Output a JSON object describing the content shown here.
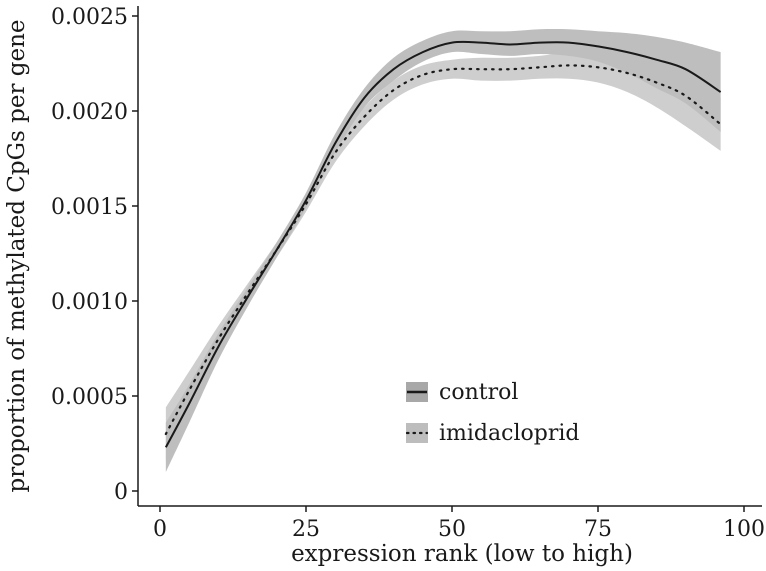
{
  "chart_data": {
    "type": "line",
    "title": "",
    "xlabel": "expression rank (low to high)",
    "ylabel": "proportion of methylated CpGs per gene",
    "xlim": [
      -3,
      100
    ],
    "ylim": [
      0,
      0.0025
    ],
    "x_ticks": [
      0,
      25,
      50,
      75,
      100
    ],
    "x_tick_labels": [
      "0",
      "25",
      "50",
      "75",
      "100"
    ],
    "y_ticks": [
      0,
      0.0005,
      0.001,
      0.0015,
      0.002,
      0.0025
    ],
    "y_tick_labels": [
      "0",
      "0.0005",
      "0.0010",
      "0.0015",
      "0.0020",
      "0.0025"
    ],
    "grid": false,
    "legend_position": "bottom-center",
    "series": [
      {
        "name": "control",
        "line_style": "solid",
        "color": "#1a1a1a",
        "band_color": "#a8a8a8",
        "x": [
          1,
          5,
          10,
          15,
          20,
          25,
          30,
          35,
          40,
          45,
          50,
          55,
          60,
          65,
          70,
          75,
          80,
          85,
          90,
          96
        ],
        "y": [
          0.00023,
          0.00046,
          0.00076,
          0.00102,
          0.00127,
          0.00153,
          0.00183,
          0.00207,
          0.00222,
          0.00231,
          0.00236,
          0.00236,
          0.00235,
          0.00236,
          0.00236,
          0.00234,
          0.00231,
          0.00227,
          0.00222,
          0.0021
        ],
        "lower": [
          0.0001,
          0.00036,
          0.00069,
          0.00097,
          0.00123,
          0.00149,
          0.00178,
          0.00202,
          0.00216,
          0.00226,
          0.00231,
          0.0023,
          0.00229,
          0.0023,
          0.00229,
          0.00226,
          0.0022,
          0.00212,
          0.00204,
          0.00189
        ],
        "upper": [
          0.00036,
          0.00056,
          0.00083,
          0.00107,
          0.00131,
          0.00157,
          0.00188,
          0.00212,
          0.00228,
          0.00237,
          0.00242,
          0.00242,
          0.00242,
          0.00243,
          0.00243,
          0.00242,
          0.00241,
          0.00239,
          0.00236,
          0.00231
        ]
      },
      {
        "name": "imidacloprid",
        "line_style": "dotted",
        "color": "#1a1a1a",
        "band_color": "#bdbdbd",
        "x": [
          1,
          5,
          10,
          15,
          20,
          25,
          30,
          35,
          40,
          45,
          50,
          55,
          60,
          65,
          70,
          75,
          80,
          85,
          90,
          96
        ],
        "y": [
          0.0003,
          0.00053,
          0.0008,
          0.00104,
          0.00127,
          0.00151,
          0.00178,
          0.00197,
          0.00211,
          0.00219,
          0.00222,
          0.00222,
          0.00222,
          0.00223,
          0.00224,
          0.00223,
          0.0022,
          0.00215,
          0.00208,
          0.00193
        ],
        "lower": [
          0.00016,
          0.00043,
          0.00073,
          0.00099,
          0.00123,
          0.00147,
          0.00173,
          0.00192,
          0.00206,
          0.00214,
          0.00217,
          0.00216,
          0.00216,
          0.00217,
          0.00217,
          0.00215,
          0.0021,
          0.00202,
          0.00192,
          0.00179
        ],
        "upper": [
          0.00044,
          0.00063,
          0.00087,
          0.00109,
          0.00131,
          0.00155,
          0.00183,
          0.00202,
          0.00216,
          0.00224,
          0.00227,
          0.00228,
          0.00228,
          0.00229,
          0.00231,
          0.00231,
          0.0023,
          0.00228,
          0.00224,
          0.00207
        ]
      }
    ]
  }
}
